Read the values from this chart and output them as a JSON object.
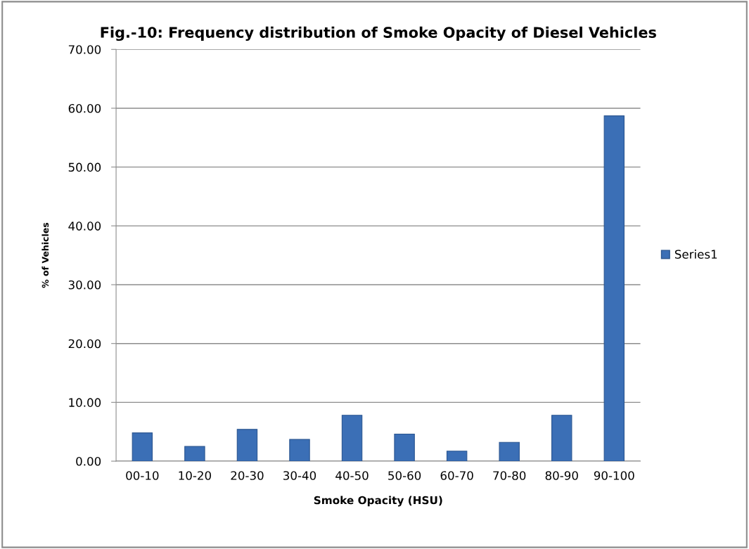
{
  "chart_data": {
    "type": "bar",
    "title": "Fig.-10: Frequency distribution of Smoke Opacity of Diesel Vehicles",
    "xlabel": "Smoke Opacity (HSU)",
    "ylabel": "% of Vehicles",
    "categories": [
      "00-10",
      "10-20",
      "20-30",
      "30-40",
      "40-50",
      "50-60",
      "60-70",
      "70-80",
      "80-90",
      "90-100"
    ],
    "series": [
      {
        "name": "Series1",
        "color": "#3b6fb6",
        "values": [
          4.8,
          2.5,
          5.4,
          3.7,
          7.8,
          4.6,
          1.7,
          3.2,
          7.8,
          58.7
        ]
      }
    ],
    "ylim": [
      0,
      70
    ],
    "yticks": [
      {
        "value": 0,
        "label": "0.00"
      },
      {
        "value": 10,
        "label": "10.00"
      },
      {
        "value": 20,
        "label": "20.00"
      },
      {
        "value": 30,
        "label": "30.00"
      },
      {
        "value": 40,
        "label": "40.00"
      },
      {
        "value": 50,
        "label": "50.00"
      },
      {
        "value": 60,
        "label": "60.00"
      },
      {
        "value": 70,
        "label": "70.00"
      }
    ],
    "grid": "y",
    "legend": "right"
  }
}
